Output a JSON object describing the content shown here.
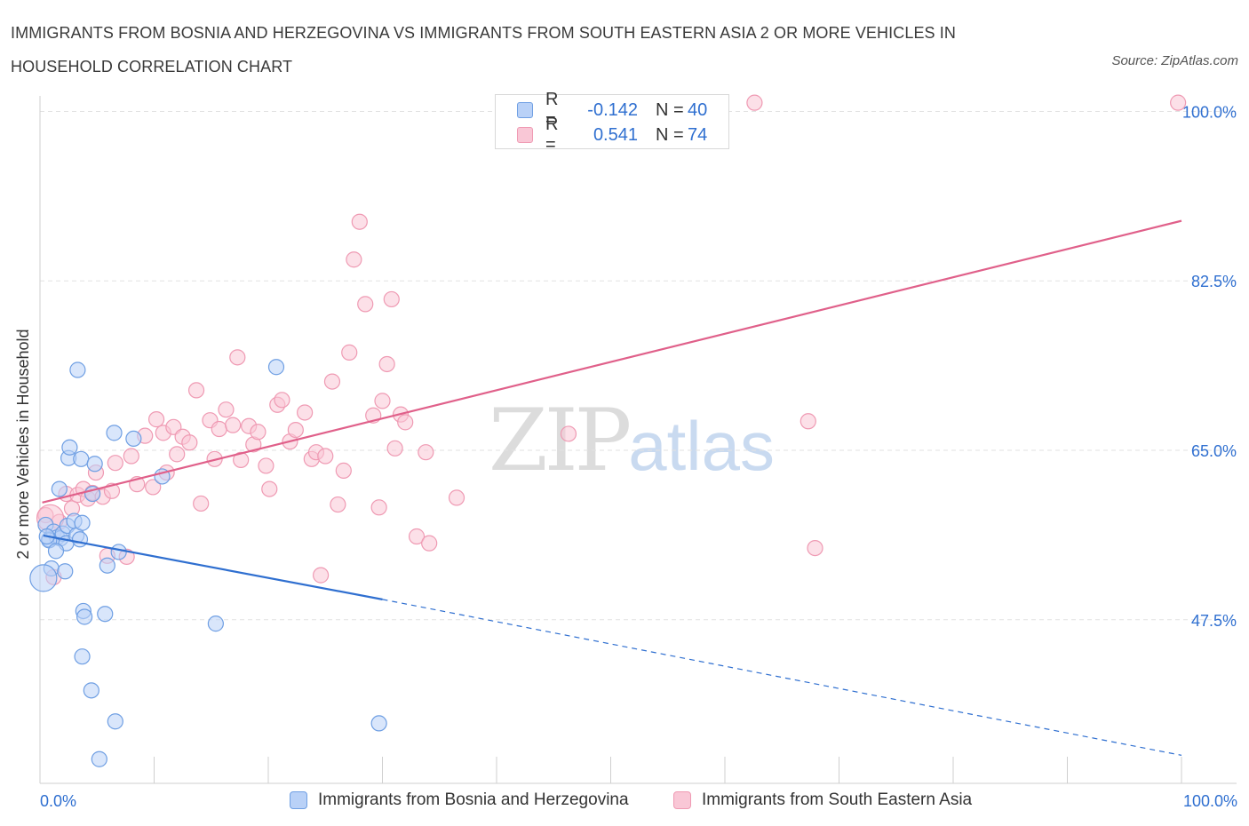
{
  "title": "IMMIGRANTS FROM BOSNIA AND HERZEGOVINA VS IMMIGRANTS FROM SOUTH EASTERN ASIA 2 OR MORE VEHICLES IN HOUSEHOLD CORRELATION CHART",
  "source": "Source: ZipAtlas.com",
  "watermark": {
    "zip": "ZIP",
    "atlas": "atlas"
  },
  "legend_top": {
    "r_label": "R =",
    "n_label": "N =",
    "rows": [
      {
        "r": "-0.142",
        "n": "40"
      },
      {
        "r": "0.541",
        "n": "74"
      }
    ]
  },
  "colors": {
    "blue_fill": "#b9d1f7",
    "blue_stroke": "#6f9fe3",
    "blue_line": "#2f6fd0",
    "pink_fill": "#f9c7d6",
    "pink_stroke": "#ef9ab3",
    "pink_line": "#e0608a",
    "tick_text": "#2f6fd0",
    "grid": "#e2e2e2"
  },
  "chart_data": {
    "type": "scatter",
    "title": "IMMIGRANTS FROM BOSNIA AND HERZEGOVINA VS IMMIGRANTS FROM SOUTH EASTERN ASIA 2 OR MORE VEHICLES IN HOUSEHOLD CORRELATION CHART",
    "xlabel": "",
    "ylabel": "2 or more Vehicles in Household",
    "xlim": [
      0,
      100
    ],
    "ylim": [
      30.6,
      101.6
    ],
    "x_tick_labels": [
      "0.0%",
      "100.0%"
    ],
    "y_ticks": [
      47.5,
      65.0,
      82.5,
      100.0
    ],
    "y_tick_labels": [
      "47.5%",
      "65.0%",
      "82.5%",
      "100.0%"
    ],
    "grid": true,
    "legend_placement": "bottom",
    "series": [
      {
        "name": "Immigrants from Bosnia and Herzegovina",
        "color": "#6f9fe3",
        "R": -0.142,
        "N": 40,
        "trend": {
          "x0": 0.3,
          "y0": 56.2,
          "x1": 30.0,
          "y1": 49.6,
          "dash_to_x": 100.0,
          "dash_to_y": 33.5
        },
        "points": [
          [
            0.5,
            57.3
          ],
          [
            0.8,
            55.8
          ],
          [
            1.0,
            52.8
          ],
          [
            0.3,
            51.8
          ],
          [
            1.2,
            56.6
          ],
          [
            1.5,
            56.0
          ],
          [
            1.7,
            61.0
          ],
          [
            1.8,
            55.9
          ],
          [
            2.0,
            56.4
          ],
          [
            2.2,
            52.5
          ],
          [
            2.3,
            55.4
          ],
          [
            2.4,
            57.2
          ],
          [
            2.5,
            64.2
          ],
          [
            2.6,
            65.3
          ],
          [
            3.0,
            57.7
          ],
          [
            3.2,
            56.2
          ],
          [
            3.5,
            55.8
          ],
          [
            3.3,
            73.3
          ],
          [
            3.6,
            64.1
          ],
          [
            3.7,
            57.5
          ],
          [
            4.6,
            60.5
          ],
          [
            4.8,
            63.6
          ],
          [
            3.8,
            48.4
          ],
          [
            3.9,
            47.8
          ],
          [
            5.7,
            48.1
          ],
          [
            3.7,
            43.7
          ],
          [
            4.5,
            40.2
          ],
          [
            6.6,
            37.0
          ],
          [
            5.2,
            33.1
          ],
          [
            5.9,
            53.1
          ],
          [
            6.5,
            66.8
          ],
          [
            6.9,
            54.5
          ],
          [
            8.2,
            66.2
          ],
          [
            10.7,
            62.3
          ],
          [
            15.4,
            47.1
          ],
          [
            20.7,
            73.6
          ],
          [
            29.7,
            36.8
          ],
          [
            0.8,
            55.7
          ],
          [
            1.4,
            54.6
          ],
          [
            0.6,
            56.1
          ]
        ]
      },
      {
        "name": "Immigrants from South Eastern Asia",
        "color": "#ef9ab3",
        "R": 0.541,
        "N": 74,
        "trend": {
          "x0": 0.2,
          "y0": 59.6,
          "x1": 100.0,
          "y1": 88.7
        },
        "points": [
          [
            0.5,
            58.3
          ],
          [
            1.2,
            51.9
          ],
          [
            1.7,
            57.6
          ],
          [
            2.3,
            60.5
          ],
          [
            2.8,
            59.0
          ],
          [
            3.3,
            60.4
          ],
          [
            3.8,
            61.0
          ],
          [
            4.2,
            60.0
          ],
          [
            4.6,
            60.6
          ],
          [
            4.9,
            62.7
          ],
          [
            5.5,
            60.2
          ],
          [
            5.9,
            54.1
          ],
          [
            6.3,
            60.8
          ],
          [
            6.6,
            63.7
          ],
          [
            7.6,
            54.0
          ],
          [
            8.0,
            64.4
          ],
          [
            8.5,
            61.5
          ],
          [
            9.2,
            66.5
          ],
          [
            9.9,
            61.2
          ],
          [
            10.2,
            68.2
          ],
          [
            10.8,
            66.8
          ],
          [
            11.1,
            62.7
          ],
          [
            11.7,
            67.4
          ],
          [
            12.0,
            64.6
          ],
          [
            12.5,
            66.4
          ],
          [
            13.1,
            65.8
          ],
          [
            13.7,
            71.2
          ],
          [
            14.1,
            59.5
          ],
          [
            14.9,
            68.1
          ],
          [
            15.3,
            64.1
          ],
          [
            15.7,
            67.2
          ],
          [
            16.3,
            69.2
          ],
          [
            16.9,
            67.6
          ],
          [
            17.3,
            74.6
          ],
          [
            17.6,
            64.0
          ],
          [
            18.3,
            67.5
          ],
          [
            18.7,
            65.6
          ],
          [
            19.1,
            66.9
          ],
          [
            19.8,
            63.4
          ],
          [
            20.1,
            61.0
          ],
          [
            20.8,
            69.7
          ],
          [
            21.2,
            70.2
          ],
          [
            21.9,
            65.9
          ],
          [
            22.4,
            67.1
          ],
          [
            23.2,
            68.9
          ],
          [
            23.8,
            64.1
          ],
          [
            24.2,
            64.8
          ],
          [
            24.6,
            52.1
          ],
          [
            25.0,
            64.4
          ],
          [
            25.6,
            72.1
          ],
          [
            26.1,
            59.4
          ],
          [
            26.6,
            62.9
          ],
          [
            27.1,
            75.1
          ],
          [
            27.5,
            84.7
          ],
          [
            28.0,
            88.6
          ],
          [
            28.5,
            80.1
          ],
          [
            29.2,
            68.6
          ],
          [
            29.7,
            59.1
          ],
          [
            30.0,
            70.1
          ],
          [
            30.4,
            73.9
          ],
          [
            30.8,
            80.6
          ],
          [
            31.6,
            68.7
          ],
          [
            32.0,
            67.9
          ],
          [
            31.1,
            65.2
          ],
          [
            33.0,
            56.1
          ],
          [
            34.1,
            55.4
          ],
          [
            33.8,
            64.8
          ],
          [
            36.5,
            60.1
          ],
          [
            46.3,
            66.7
          ],
          [
            62.6,
            100.9
          ],
          [
            67.3,
            68.0
          ],
          [
            67.9,
            54.9
          ],
          [
            99.7,
            100.9
          ],
          [
            0.9,
            58.0
          ]
        ]
      }
    ]
  },
  "legend_bottom": [
    {
      "label": "Immigrants from Bosnia and Herzegovina"
    },
    {
      "label": "Immigrants from South Eastern Asia"
    }
  ]
}
